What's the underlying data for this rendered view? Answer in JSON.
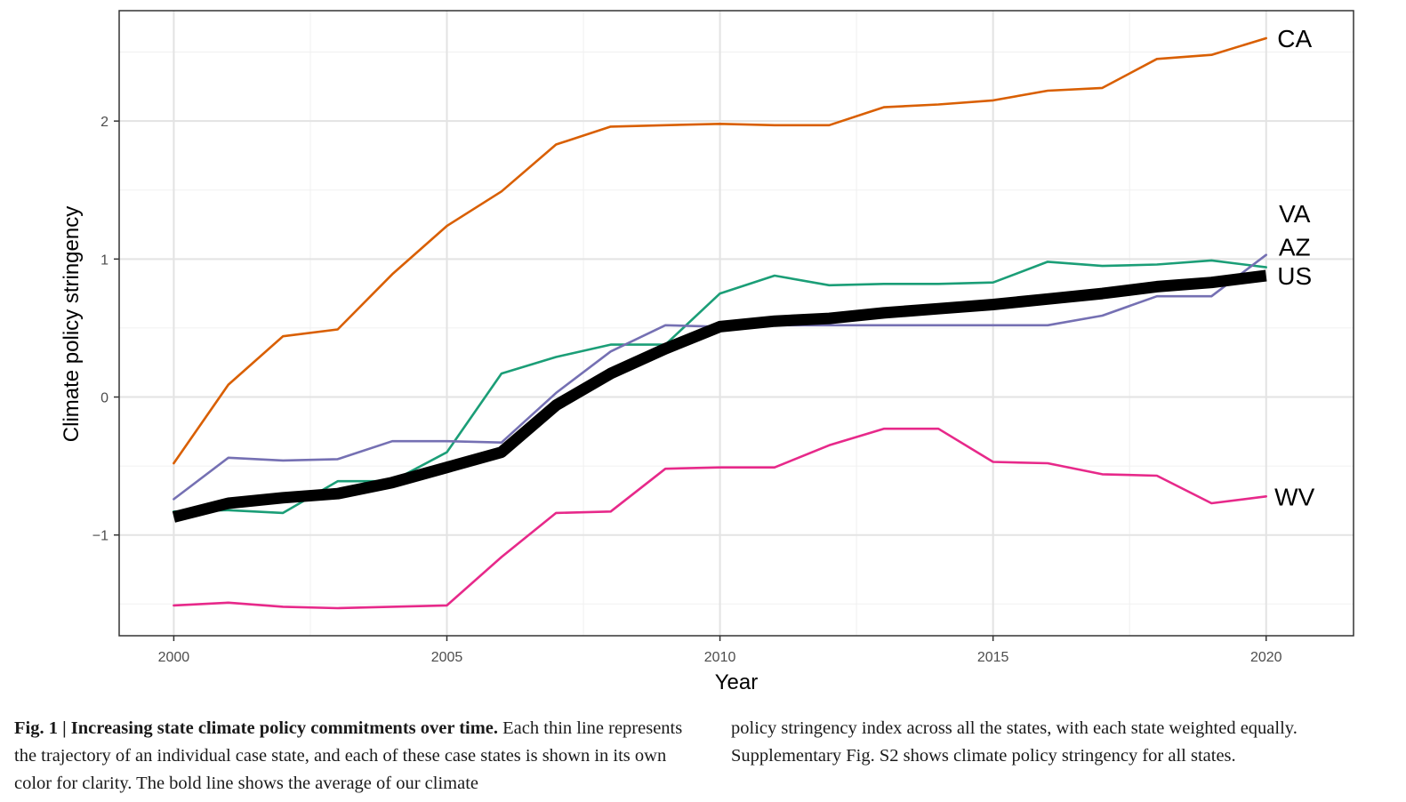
{
  "chart_data": {
    "type": "line",
    "xlabel": "Year",
    "ylabel": "Climate policy stringency",
    "xlim": [
      1999,
      2021.6
    ],
    "ylim": [
      -1.73,
      2.8
    ],
    "x_ticks": [
      2000,
      2005,
      2010,
      2015,
      2020
    ],
    "y_ticks": [
      -1,
      0,
      1,
      2
    ],
    "y_tick_labels": [
      "−1",
      "0",
      "1",
      "2"
    ],
    "grid": true,
    "x": [
      2000,
      2001,
      2002,
      2003,
      2004,
      2005,
      2006,
      2007,
      2008,
      2009,
      2010,
      2011,
      2012,
      2013,
      2014,
      2015,
      2016,
      2017,
      2018,
      2019,
      2020
    ],
    "series": [
      {
        "name": "CA",
        "color": "#d95f02",
        "bold": false,
        "values": [
          -0.48,
          0.09,
          0.44,
          0.49,
          0.89,
          1.24,
          1.49,
          1.83,
          1.96,
          1.97,
          1.98,
          1.97,
          1.97,
          2.1,
          2.12,
          2.15,
          2.22,
          2.24,
          2.45,
          2.48,
          2.6
        ]
      },
      {
        "name": "AZ",
        "color": "#1b9e77",
        "bold": false,
        "values": [
          -0.83,
          -0.82,
          -0.84,
          -0.61,
          -0.61,
          -0.4,
          0.17,
          0.29,
          0.38,
          0.38,
          0.75,
          0.88,
          0.81,
          0.82,
          0.82,
          0.83,
          0.98,
          0.95,
          0.96,
          0.99,
          0.94
        ]
      },
      {
        "name": "VA",
        "color": "#7570b3",
        "bold": false,
        "values": [
          -0.74,
          -0.44,
          -0.46,
          -0.45,
          -0.32,
          -0.32,
          -0.33,
          0.03,
          0.33,
          0.52,
          0.51,
          0.52,
          0.52,
          0.52,
          0.52,
          0.52,
          0.52,
          0.59,
          0.73,
          0.73,
          1.03
        ]
      },
      {
        "name": "WV",
        "color": "#e7298a",
        "bold": false,
        "values": [
          -1.51,
          -1.49,
          -1.52,
          -1.53,
          -1.52,
          -1.51,
          -1.16,
          -0.84,
          -0.83,
          -0.52,
          -0.51,
          -0.51,
          -0.35,
          -0.23,
          -0.23,
          -0.47,
          -0.48,
          -0.56,
          -0.57,
          -0.77,
          -0.72
        ]
      },
      {
        "name": "US",
        "color": "#000000",
        "bold": true,
        "values": [
          -0.87,
          -0.77,
          -0.73,
          -0.7,
          -0.62,
          -0.51,
          -0.4,
          -0.06,
          0.17,
          0.35,
          0.51,
          0.55,
          0.57,
          0.61,
          0.64,
          0.67,
          0.71,
          0.75,
          0.8,
          0.83,
          0.88
        ]
      }
    ],
    "labels": [
      {
        "text": "CA",
        "x": 2020,
        "y": 2.6
      },
      {
        "text": "VA",
        "x": 2020,
        "y": 1.33
      },
      {
        "text": "AZ",
        "x": 2020,
        "y": 1.09
      },
      {
        "text": "US",
        "x": 2020,
        "y": 0.88
      },
      {
        "text": "WV",
        "x": 2020,
        "y": -0.72
      }
    ]
  },
  "caption": {
    "fig_label": "Fig. 1 | Increasing state climate policy commitments over time.",
    "text_left": "Each thin line represents the trajectory of an individual case state, and each of these case states is shown in its own color for clarity. The bold line shows the average of our climate",
    "text_right": "policy stringency index across all the states, with each state weighted equally. Supplementary Fig. S2 shows climate policy stringency for all states."
  }
}
